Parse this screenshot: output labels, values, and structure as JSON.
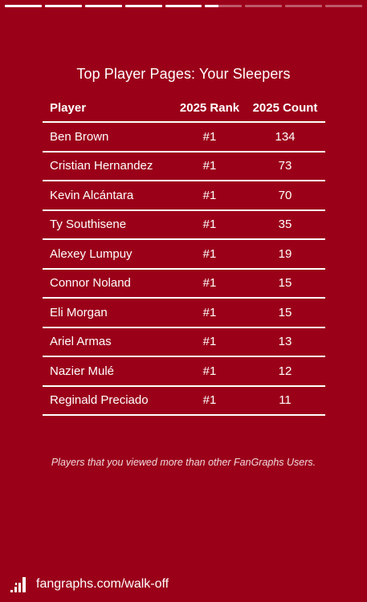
{
  "story_progress": {
    "segments": [
      1,
      1,
      1,
      1,
      1,
      0.35,
      0,
      0,
      0
    ]
  },
  "title": "Top Player Pages: Your Sleepers",
  "table": {
    "headers": {
      "player": "Player",
      "rank": "2025 Rank",
      "count": "2025 Count"
    },
    "rows": [
      {
        "player": "Ben Brown",
        "rank": "#1",
        "count": "134"
      },
      {
        "player": "Cristian Hernandez",
        "rank": "#1",
        "count": "73"
      },
      {
        "player": "Kevin Alcántara",
        "rank": "#1",
        "count": "70"
      },
      {
        "player": "Ty Southisene",
        "rank": "#1",
        "count": "35"
      },
      {
        "player": "Alexey Lumpuy",
        "rank": "#1",
        "count": "19"
      },
      {
        "player": "Connor Noland",
        "rank": "#1",
        "count": "15"
      },
      {
        "player": "Eli Morgan",
        "rank": "#1",
        "count": "15"
      },
      {
        "player": "Ariel Armas",
        "rank": "#1",
        "count": "13"
      },
      {
        "player": "Nazier Mulé",
        "rank": "#1",
        "count": "12"
      },
      {
        "player": "Reginald Preciado",
        "rank": "#1",
        "count": "11"
      }
    ]
  },
  "footnote": "Players that you viewed more than other FanGraphs Users.",
  "brand": {
    "url": "fangraphs.com/walk-off",
    "logo_icon": "fangraphs-logo-icon"
  },
  "colors": {
    "background": "#9b0019",
    "text": "#ffffff"
  }
}
